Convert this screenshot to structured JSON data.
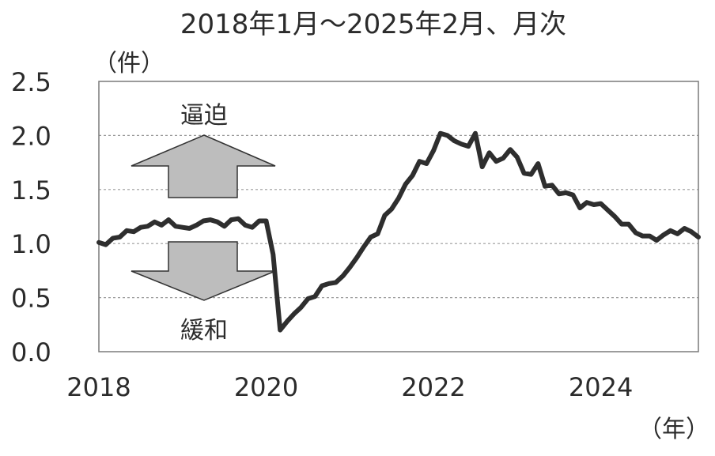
{
  "chart_data": {
    "type": "line",
    "title": "2018年1月～2025年2月、月次",
    "ylabel": "（件）",
    "xlabel": "（年）",
    "ylim": [
      0.0,
      2.5
    ],
    "yticks": [
      "0.0",
      "0.5",
      "1.0",
      "1.5",
      "2.0",
      "2.5"
    ],
    "xticks": [
      "2018",
      "2020",
      "2022",
      "2024"
    ],
    "x_range": [
      2018.0,
      2025.1667
    ],
    "grid": true,
    "annotations": {
      "up": "逼迫",
      "down": "緩和"
    },
    "series": [
      {
        "x": [
          2018.0,
          2018.083,
          2018.167,
          2018.25,
          2018.333,
          2018.417,
          2018.5,
          2018.583,
          2018.667,
          2018.75,
          2018.833,
          2018.917,
          2019.0,
          2019.083,
          2019.167,
          2019.25,
          2019.333,
          2019.417,
          2019.5,
          2019.583,
          2019.667,
          2019.75,
          2019.833,
          2019.917,
          2020.0,
          2020.083,
          2020.167,
          2020.25,
          2020.333,
          2020.417,
          2020.5,
          2020.583,
          2020.667,
          2020.75,
          2020.833,
          2020.917,
          2021.0,
          2021.083,
          2021.167,
          2021.25,
          2021.333,
          2021.417,
          2021.5,
          2021.583,
          2021.667,
          2021.75,
          2021.833,
          2021.917,
          2022.0,
          2022.083,
          2022.167,
          2022.25,
          2022.333,
          2022.417,
          2022.5,
          2022.583,
          2022.667,
          2022.75,
          2022.833,
          2022.917,
          2023.0,
          2023.083,
          2023.167,
          2023.25,
          2023.333,
          2023.417,
          2023.5,
          2023.583,
          2023.667,
          2023.75,
          2023.833,
          2023.917,
          2024.0,
          2024.083,
          2024.167,
          2024.25,
          2024.333,
          2024.417,
          2024.5,
          2024.583,
          2024.667,
          2024.75,
          2024.833,
          2024.917,
          2025.0,
          2025.083,
          2025.1667
        ],
        "y": [
          1.01,
          0.99,
          1.05,
          1.06,
          1.12,
          1.11,
          1.15,
          1.16,
          1.2,
          1.17,
          1.22,
          1.16,
          1.15,
          1.14,
          1.17,
          1.21,
          1.22,
          1.2,
          1.16,
          1.22,
          1.23,
          1.17,
          1.15,
          1.21,
          1.21,
          0.9,
          0.2,
          0.28,
          0.35,
          0.41,
          0.49,
          0.51,
          0.61,
          0.63,
          0.64,
          0.7,
          0.78,
          0.87,
          0.97,
          1.06,
          1.09,
          1.26,
          1.32,
          1.42,
          1.55,
          1.63,
          1.76,
          1.74,
          1.86,
          2.02,
          2.0,
          1.95,
          1.92,
          1.9,
          2.02,
          1.71,
          1.84,
          1.76,
          1.79,
          1.87,
          1.8,
          1.65,
          1.64,
          1.74,
          1.53,
          1.54,
          1.46,
          1.47,
          1.45,
          1.33,
          1.38,
          1.36,
          1.37,
          1.31,
          1.25,
          1.18,
          1.18,
          1.1,
          1.07,
          1.07,
          1.03,
          1.08,
          1.12,
          1.09,
          1.14,
          1.11,
          1.06
        ]
      }
    ]
  }
}
